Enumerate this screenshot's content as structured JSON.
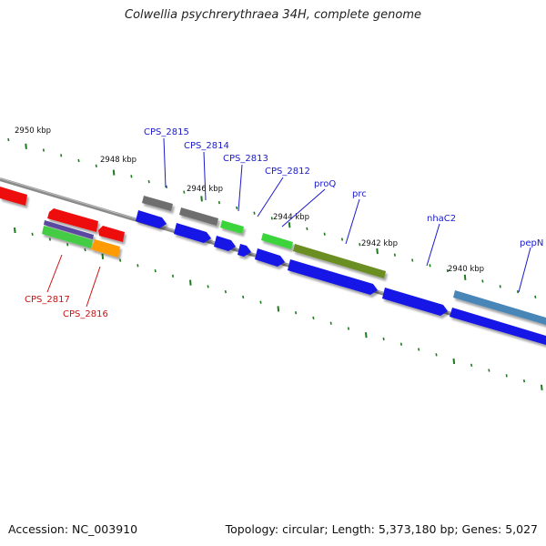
{
  "title": "Colwellia psychrerythraea 34H, complete genome",
  "footer": {
    "accession": "Accession: NC_003910",
    "summary": "Topology: circular; Length: 5,373,180 bp; Genes: 5,027"
  },
  "scale_labels": [
    "2950 kbp",
    "2948 kbp",
    "2946 kbp",
    "2944 kbp",
    "2942 kbp",
    "2940 kbp"
  ],
  "gene_labels": {
    "forward": [
      "CPS_2815",
      "CPS_2814",
      "CPS_2813",
      "CPS_2812",
      "proQ",
      "prc",
      "nhaC2",
      "pepN"
    ],
    "reverse": [
      "CPS_2817",
      "CPS_2816"
    ]
  },
  "colors": {
    "forward_label": "#1a1acc",
    "reverse_label": "#cc1111",
    "backbone": "#888888",
    "tick": "#1e7a1e",
    "cds_blue": "#1010e0",
    "cds_red": "#ee1010",
    "grey": "#666666",
    "green": "#33cc33",
    "olive": "#6b8e23",
    "steelblue": "#4682b4",
    "orange": "#ff9900",
    "purple": "#555599"
  }
}
